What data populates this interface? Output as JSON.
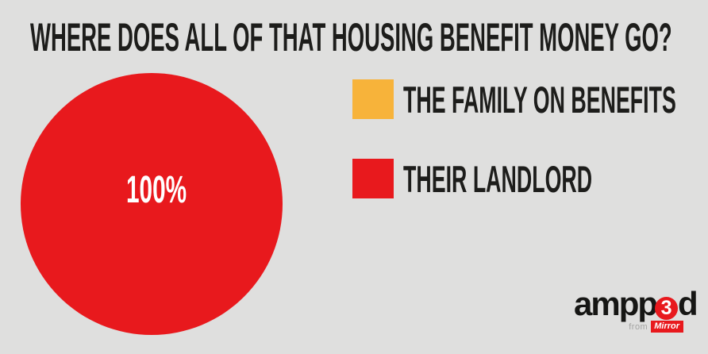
{
  "background_color": "#dfdfde",
  "title": {
    "text": "WHERE DOES ALL OF THAT HOUSING BENEFIT MONEY GO?",
    "color": "#1d1d1b"
  },
  "chart_data": {
    "type": "pie",
    "title": "WHERE DOES ALL OF THAT HOUSING BENEFIT MONEY GO?",
    "slices": [
      {
        "label": "THE FAMILY ON BENEFITS",
        "value": 0,
        "color": "#f7b33a"
      },
      {
        "label": "THEIR LANDLORD",
        "value": 100,
        "color": "#e8191d"
      }
    ],
    "data_labels": [
      "100%"
    ],
    "legend_position": "right"
  },
  "pie": {
    "label": "100%",
    "color": "#e8191d",
    "label_color": "#ffffff"
  },
  "legend": {
    "items": [
      {
        "label": "THE FAMILY ON BENEFITS",
        "swatch_color": "#f7b33a"
      },
      {
        "label": "THEIR LANDLORD",
        "swatch_color": "#e8191d"
      }
    ]
  },
  "branding": {
    "logo_text_left": "ampp",
    "logo_digit": "3",
    "logo_text_right": "d",
    "from_label": "from",
    "mirror_label": "Mirror",
    "accent_color": "#e8191d"
  }
}
